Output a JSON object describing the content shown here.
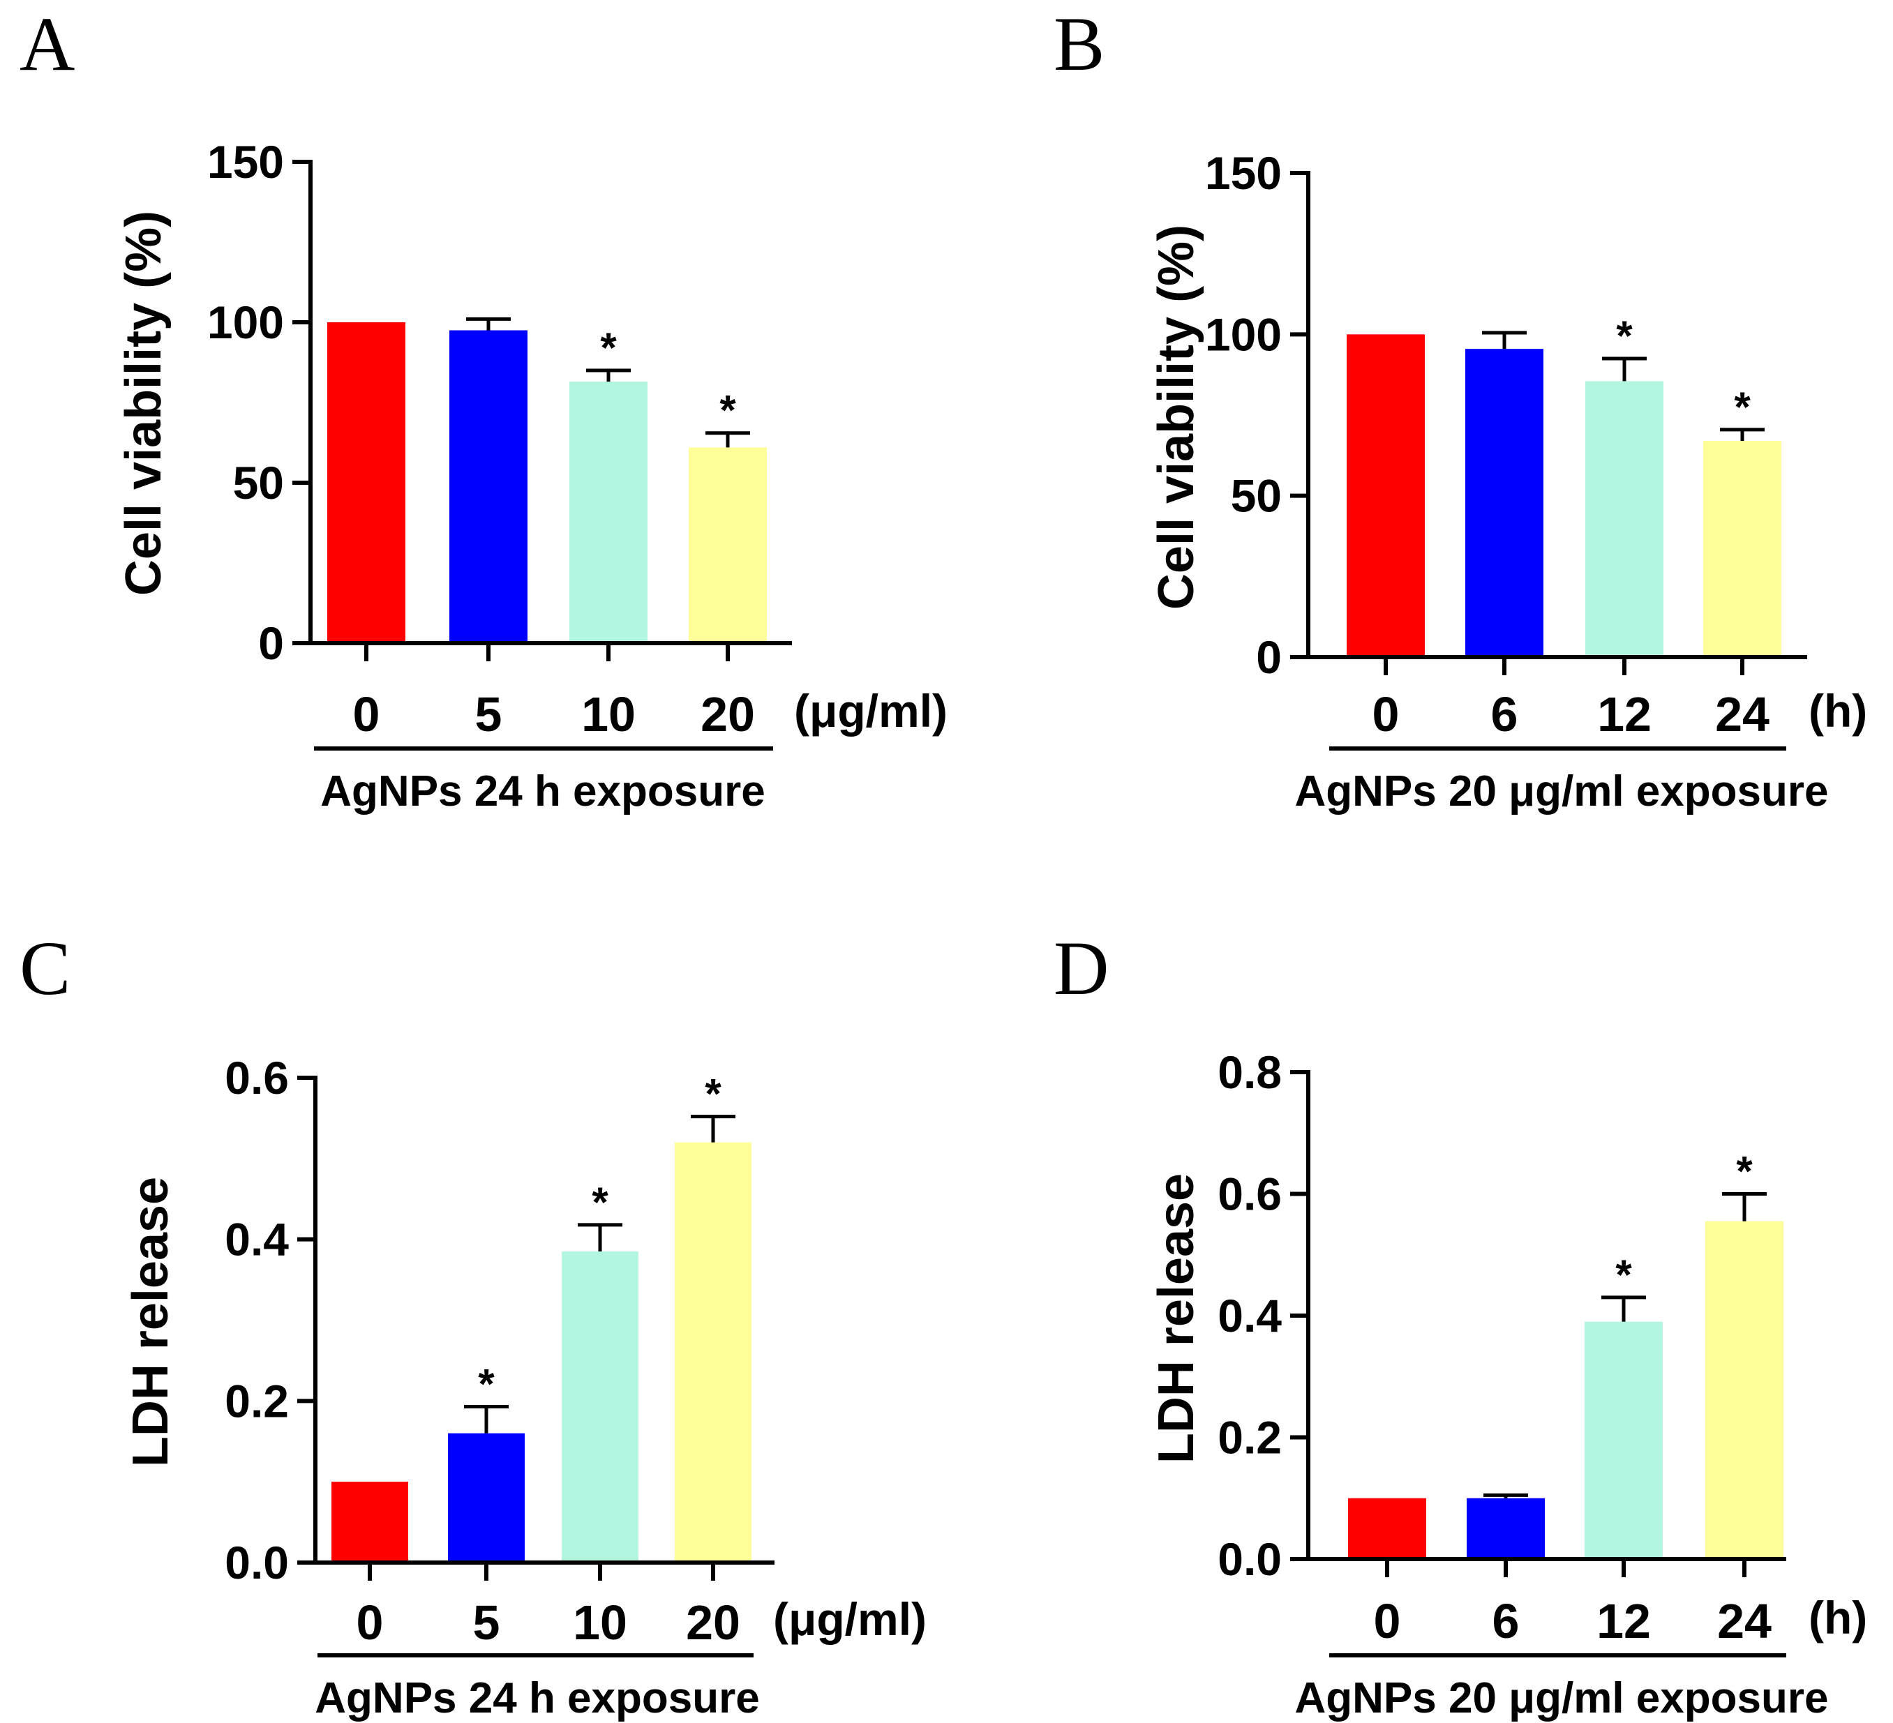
{
  "figure": {
    "panels": [
      "A",
      "B",
      "C",
      "D"
    ]
  },
  "chart_data": [
    {
      "panel": "A",
      "type": "bar",
      "title": "",
      "ylabel": "Cell viability (%)",
      "ylim": [
        0,
        150
      ],
      "yticks": [
        0,
        50,
        100,
        150
      ],
      "ytick_labels": [
        "0",
        "50",
        "100",
        "150"
      ],
      "categories": [
        "0",
        "5",
        "10",
        "20"
      ],
      "unit": "(μg/ml)",
      "group_label": "AgNPs 24 h exposure",
      "values": [
        100,
        97.5,
        81.5,
        61
      ],
      "errors": [
        0,
        3.5,
        3.5,
        4.5
      ],
      "significance": [
        "",
        "",
        "*",
        "*"
      ],
      "colors": [
        "#ff0000",
        "#0000ff",
        "#b3f5e0",
        "#ffff99"
      ]
    },
    {
      "panel": "B",
      "type": "bar",
      "title": "",
      "ylabel": "Cell viability (%)",
      "ylim": [
        0,
        150
      ],
      "yticks": [
        0,
        50,
        100,
        150
      ],
      "ytick_labels": [
        "0",
        "50",
        "100",
        "150"
      ],
      "categories": [
        "0",
        "6",
        "12",
        "24"
      ],
      "unit": "(h)",
      "group_label": "AgNPs 20 μg/ml exposure",
      "values": [
        100,
        95.5,
        85.5,
        67
      ],
      "errors": [
        0,
        5,
        7,
        3.5
      ],
      "significance": [
        "",
        "",
        "*",
        "*"
      ],
      "colors": [
        "#ff0000",
        "#0000ff",
        "#b3f5e0",
        "#ffff99"
      ]
    },
    {
      "panel": "C",
      "type": "bar",
      "title": "",
      "ylabel": "LDH release",
      "ylim": [
        0,
        0.6
      ],
      "yticks": [
        0,
        0.2,
        0.4,
        0.6
      ],
      "ytick_labels": [
        "0.0",
        "0.2",
        "0.4",
        "0.6"
      ],
      "categories": [
        "0",
        "5",
        "10",
        "20"
      ],
      "unit": "(μg/ml)",
      "group_label": "AgNPs 24 h exposure",
      "values": [
        0.1,
        0.16,
        0.385,
        0.52
      ],
      "errors": [
        0,
        0.033,
        0.033,
        0.032
      ],
      "significance": [
        "",
        "*",
        "*",
        "*"
      ],
      "colors": [
        "#ff0000",
        "#0000ff",
        "#b3f5e0",
        "#ffff99"
      ]
    },
    {
      "panel": "D",
      "type": "bar",
      "title": "",
      "ylabel": "LDH release",
      "ylim": [
        0,
        0.8
      ],
      "yticks": [
        0,
        0.2,
        0.4,
        0.6,
        0.8
      ],
      "ytick_labels": [
        "0.0",
        "0.2",
        "0.4",
        "0.6",
        "0.8"
      ],
      "categories": [
        "0",
        "6",
        "12",
        "24"
      ],
      "unit": "(h)",
      "group_label": "AgNPs 20 μg/ml exposure",
      "values": [
        0.1,
        0.1,
        0.39,
        0.555
      ],
      "errors": [
        0,
        0.005,
        0.04,
        0.045
      ],
      "significance": [
        "",
        "",
        "*",
        "*"
      ],
      "colors": [
        "#ff0000",
        "#0000ff",
        "#b3f5e0",
        "#ffff99"
      ]
    }
  ]
}
